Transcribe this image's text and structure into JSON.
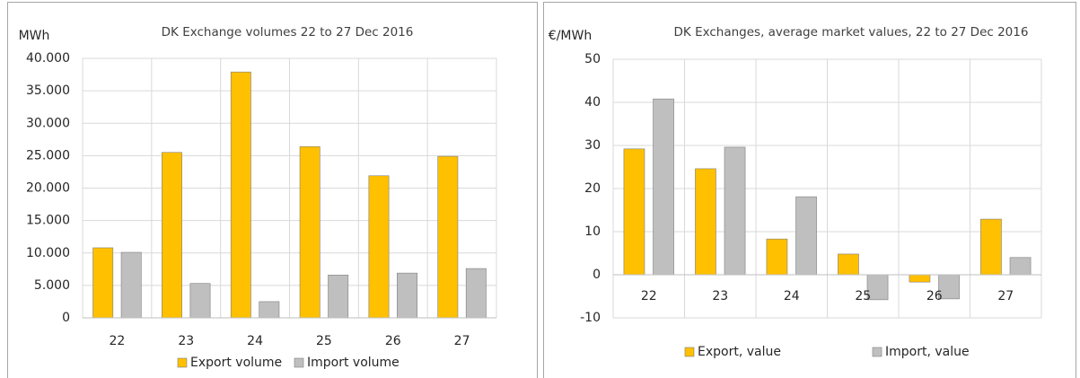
{
  "chart_data": [
    {
      "type": "bar",
      "title": "DK Exchange volumes 22 to 27 Dec 2016",
      "y_label": "MWh",
      "categories": [
        "22",
        "23",
        "24",
        "25",
        "26",
        "27"
      ],
      "series": [
        {
          "name": "Export volume",
          "color": "#ffc000",
          "values": [
            10800,
            25500,
            37900,
            26400,
            21900,
            24900
          ]
        },
        {
          "name": "Import volume",
          "color": "#bfbfbf",
          "values": [
            10100,
            5300,
            2500,
            6600,
            6900,
            7600
          ]
        }
      ],
      "ylim": [
        0,
        40000
      ],
      "yticks": [
        0,
        {
          "value": 5000,
          "label": "5.000"
        },
        {
          "value": 10000,
          "label": "10.000"
        },
        {
          "value": 15000,
          "label": "15.000"
        },
        {
          "value": 20000,
          "label": "20.000"
        },
        {
          "value": 25000,
          "label": "25.000"
        },
        {
          "value": 30000,
          "label": "30.000"
        },
        {
          "value": 35000,
          "label": "35.000"
        },
        {
          "value": 40000,
          "label": "40.000"
        }
      ],
      "grid": true,
      "legend": "bottom"
    },
    {
      "type": "bar",
      "title": "DK Exchanges, average market values, 22 to 27 Dec 2016",
      "y_label": "€/MWh",
      "categories": [
        "22",
        "23",
        "24",
        "25",
        "26",
        "27"
      ],
      "series": [
        {
          "name": "Export, value",
          "color": "#ffc000",
          "values": [
            29.2,
            24.6,
            8.3,
            4.8,
            -1.7,
            12.9
          ]
        },
        {
          "name": "Import, value",
          "color": "#bfbfbf",
          "values": [
            40.8,
            29.6,
            18.1,
            -5.8,
            -5.6,
            4.0
          ]
        }
      ],
      "ylim": [
        -10,
        50
      ],
      "yticks": [
        -10,
        0,
        10,
        20,
        30,
        40,
        50
      ],
      "grid": true,
      "legend": "bottom"
    }
  ]
}
